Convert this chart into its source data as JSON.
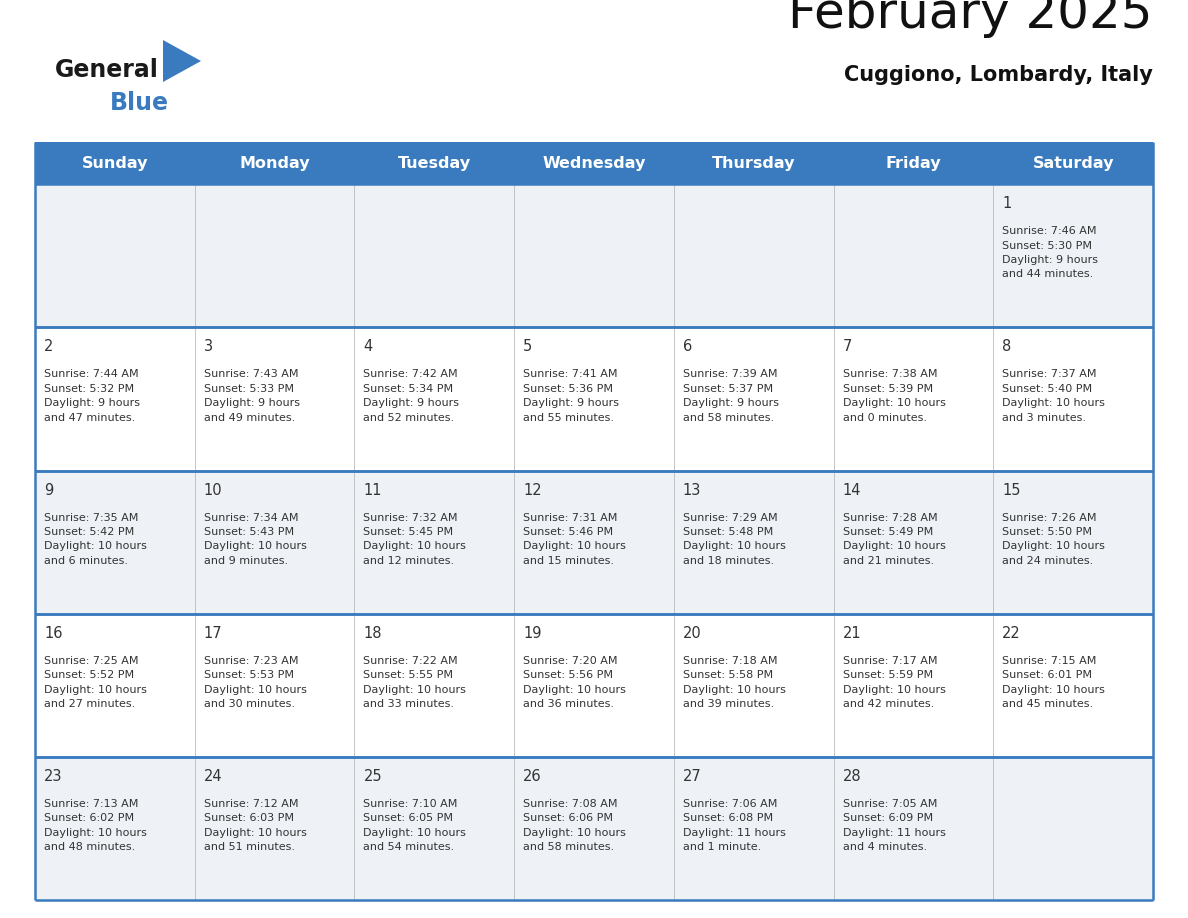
{
  "title": "February 2025",
  "subtitle": "Cuggiono, Lombardy, Italy",
  "days_of_week": [
    "Sunday",
    "Monday",
    "Tuesday",
    "Wednesday",
    "Thursday",
    "Friday",
    "Saturday"
  ],
  "header_bg": "#3a7bbf",
  "header_text": "#ffffff",
  "cell_bg_odd": "#eef2f7",
  "cell_bg_even": "#ffffff",
  "line_color": "#3a7bbf",
  "text_color": "#333333",
  "logo_black": "#1a1a1a",
  "logo_blue": "#3a7bbf",
  "calendar_data": [
    [
      {
        "day": null,
        "info": ""
      },
      {
        "day": null,
        "info": ""
      },
      {
        "day": null,
        "info": ""
      },
      {
        "day": null,
        "info": ""
      },
      {
        "day": null,
        "info": ""
      },
      {
        "day": null,
        "info": ""
      },
      {
        "day": 1,
        "info": "Sunrise: 7:46 AM\nSunset: 5:30 PM\nDaylight: 9 hours\nand 44 minutes."
      }
    ],
    [
      {
        "day": 2,
        "info": "Sunrise: 7:44 AM\nSunset: 5:32 PM\nDaylight: 9 hours\nand 47 minutes."
      },
      {
        "day": 3,
        "info": "Sunrise: 7:43 AM\nSunset: 5:33 PM\nDaylight: 9 hours\nand 49 minutes."
      },
      {
        "day": 4,
        "info": "Sunrise: 7:42 AM\nSunset: 5:34 PM\nDaylight: 9 hours\nand 52 minutes."
      },
      {
        "day": 5,
        "info": "Sunrise: 7:41 AM\nSunset: 5:36 PM\nDaylight: 9 hours\nand 55 minutes."
      },
      {
        "day": 6,
        "info": "Sunrise: 7:39 AM\nSunset: 5:37 PM\nDaylight: 9 hours\nand 58 minutes."
      },
      {
        "day": 7,
        "info": "Sunrise: 7:38 AM\nSunset: 5:39 PM\nDaylight: 10 hours\nand 0 minutes."
      },
      {
        "day": 8,
        "info": "Sunrise: 7:37 AM\nSunset: 5:40 PM\nDaylight: 10 hours\nand 3 minutes."
      }
    ],
    [
      {
        "day": 9,
        "info": "Sunrise: 7:35 AM\nSunset: 5:42 PM\nDaylight: 10 hours\nand 6 minutes."
      },
      {
        "day": 10,
        "info": "Sunrise: 7:34 AM\nSunset: 5:43 PM\nDaylight: 10 hours\nand 9 minutes."
      },
      {
        "day": 11,
        "info": "Sunrise: 7:32 AM\nSunset: 5:45 PM\nDaylight: 10 hours\nand 12 minutes."
      },
      {
        "day": 12,
        "info": "Sunrise: 7:31 AM\nSunset: 5:46 PM\nDaylight: 10 hours\nand 15 minutes."
      },
      {
        "day": 13,
        "info": "Sunrise: 7:29 AM\nSunset: 5:48 PM\nDaylight: 10 hours\nand 18 minutes."
      },
      {
        "day": 14,
        "info": "Sunrise: 7:28 AM\nSunset: 5:49 PM\nDaylight: 10 hours\nand 21 minutes."
      },
      {
        "day": 15,
        "info": "Sunrise: 7:26 AM\nSunset: 5:50 PM\nDaylight: 10 hours\nand 24 minutes."
      }
    ],
    [
      {
        "day": 16,
        "info": "Sunrise: 7:25 AM\nSunset: 5:52 PM\nDaylight: 10 hours\nand 27 minutes."
      },
      {
        "day": 17,
        "info": "Sunrise: 7:23 AM\nSunset: 5:53 PM\nDaylight: 10 hours\nand 30 minutes."
      },
      {
        "day": 18,
        "info": "Sunrise: 7:22 AM\nSunset: 5:55 PM\nDaylight: 10 hours\nand 33 minutes."
      },
      {
        "day": 19,
        "info": "Sunrise: 7:20 AM\nSunset: 5:56 PM\nDaylight: 10 hours\nand 36 minutes."
      },
      {
        "day": 20,
        "info": "Sunrise: 7:18 AM\nSunset: 5:58 PM\nDaylight: 10 hours\nand 39 minutes."
      },
      {
        "day": 21,
        "info": "Sunrise: 7:17 AM\nSunset: 5:59 PM\nDaylight: 10 hours\nand 42 minutes."
      },
      {
        "day": 22,
        "info": "Sunrise: 7:15 AM\nSunset: 6:01 PM\nDaylight: 10 hours\nand 45 minutes."
      }
    ],
    [
      {
        "day": 23,
        "info": "Sunrise: 7:13 AM\nSunset: 6:02 PM\nDaylight: 10 hours\nand 48 minutes."
      },
      {
        "day": 24,
        "info": "Sunrise: 7:12 AM\nSunset: 6:03 PM\nDaylight: 10 hours\nand 51 minutes."
      },
      {
        "day": 25,
        "info": "Sunrise: 7:10 AM\nSunset: 6:05 PM\nDaylight: 10 hours\nand 54 minutes."
      },
      {
        "day": 26,
        "info": "Sunrise: 7:08 AM\nSunset: 6:06 PM\nDaylight: 10 hours\nand 58 minutes."
      },
      {
        "day": 27,
        "info": "Sunrise: 7:06 AM\nSunset: 6:08 PM\nDaylight: 11 hours\nand 1 minute."
      },
      {
        "day": 28,
        "info": "Sunrise: 7:05 AM\nSunset: 6:09 PM\nDaylight: 11 hours\nand 4 minutes."
      },
      {
        "day": null,
        "info": ""
      }
    ]
  ]
}
